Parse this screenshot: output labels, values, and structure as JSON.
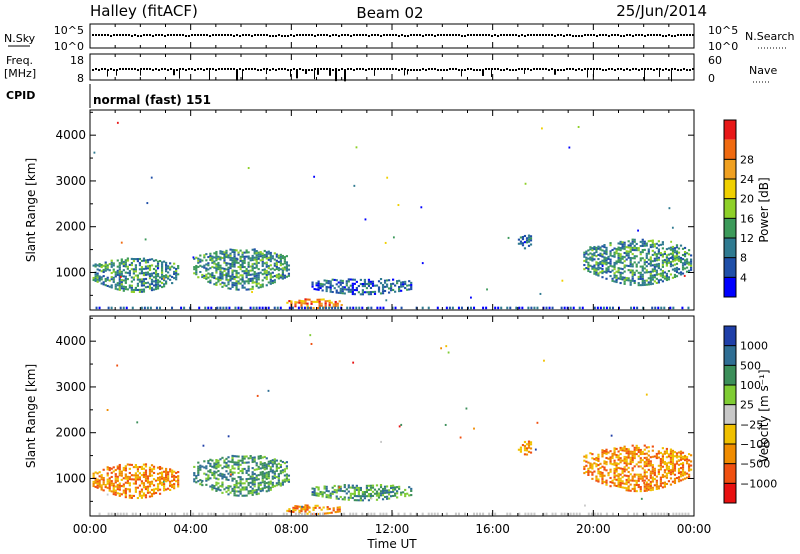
{
  "header": {
    "station": "Halley (fitACF)",
    "beam": "Beam 02",
    "date": "25/Jun/2014"
  },
  "panels": {
    "nsky": {
      "left_label": "N.Sky",
      "left_ticks": [
        "10^5",
        "10^0"
      ],
      "right_ticks": [
        "10^5",
        "10^0"
      ],
      "right_label": "N.Search"
    },
    "freq": {
      "left_label_1": "Freq.",
      "left_label_2": "[MHz]",
      "left_ticks": [
        "18",
        "8"
      ],
      "right_ticks": [
        "60",
        "0"
      ],
      "right_label": "Nave"
    },
    "cpid": {
      "label": "CPID",
      "value": "normal (fast) 151"
    }
  },
  "chart_data": [
    {
      "type": "heatmap",
      "quantity": "power",
      "ylabel": "Slant Range [km]",
      "xlabel": "",
      "xlim": [
        "00:00",
        "24:00"
      ],
      "ylim": [
        180,
        4550
      ],
      "x_ticks": [
        "00:00",
        "04:00",
        "08:00",
        "12:00",
        "16:00",
        "20:00",
        "00:00"
      ],
      "y_ticks": [
        1000,
        2000,
        3000,
        4000
      ],
      "colorbar": {
        "label": "Power [dB]",
        "ticks": [
          4,
          8,
          12,
          16,
          20,
          24,
          28
        ],
        "colors": [
          "#0000ff",
          "#1f4fa8",
          "#2f7a90",
          "#3c9a5a",
          "#8ed028",
          "#f0d000",
          "#f0a020",
          "#f06a10",
          "#e81818"
        ]
      },
      "echo_regions": [
        {
          "t_start": 0.1,
          "t_end": 3.5,
          "r_min": 550,
          "r_max": 1300,
          "level": "mid"
        },
        {
          "t_start": 4.1,
          "t_end": 7.9,
          "r_min": 600,
          "r_max": 1500,
          "level": "mid"
        },
        {
          "t_start": 8.8,
          "t_end": 12.8,
          "r_min": 500,
          "r_max": 850,
          "level": "low"
        },
        {
          "t_start": 7.8,
          "t_end": 10.0,
          "r_min": 200,
          "r_max": 400,
          "level": "high"
        },
        {
          "t_start": 19.6,
          "t_end": 23.9,
          "r_min": 700,
          "r_max": 1700,
          "level": "mid"
        },
        {
          "t_start": 17.0,
          "t_end": 17.6,
          "r_min": 1500,
          "r_max": 1800,
          "level": "low"
        }
      ]
    },
    {
      "type": "heatmap",
      "quantity": "velocity",
      "ylabel": "Slant Range [km]",
      "xlabel": "Time UT",
      "xlim": [
        "00:00",
        "24:00"
      ],
      "ylim": [
        180,
        4550
      ],
      "x_ticks": [
        "00:00",
        "04:00",
        "08:00",
        "12:00",
        "16:00",
        "20:00",
        "00:00"
      ],
      "y_ticks": [
        1000,
        2000,
        3000,
        4000
      ],
      "colorbar": {
        "label": "Velocity [m s⁻¹]",
        "ticks": [
          1000,
          500,
          100,
          25,
          -25,
          -100,
          -500,
          -1000
        ],
        "colors": [
          "#1f3fa8",
          "#2f6e94",
          "#3c8f5a",
          "#7fcc34",
          "#c8c8c8",
          "#f0c000",
          "#f08c00",
          "#f05010",
          "#e81010"
        ]
      },
      "echo_regions": [
        {
          "t_start": 0.1,
          "t_end": 3.5,
          "r_min": 550,
          "r_max": 1300,
          "sign": "negative"
        },
        {
          "t_start": 4.1,
          "t_end": 7.9,
          "r_min": 600,
          "r_max": 1500,
          "sign": "positive"
        },
        {
          "t_start": 8.8,
          "t_end": 12.8,
          "r_min": 500,
          "r_max": 850,
          "sign": "positive"
        },
        {
          "t_start": 7.8,
          "t_end": 10.0,
          "r_min": 200,
          "r_max": 400,
          "sign": "negative"
        },
        {
          "t_start": 19.6,
          "t_end": 23.9,
          "r_min": 700,
          "r_max": 1700,
          "sign": "negative"
        },
        {
          "t_start": 17.0,
          "t_end": 17.6,
          "r_min": 1500,
          "r_max": 1800,
          "sign": "negative"
        }
      ]
    }
  ]
}
